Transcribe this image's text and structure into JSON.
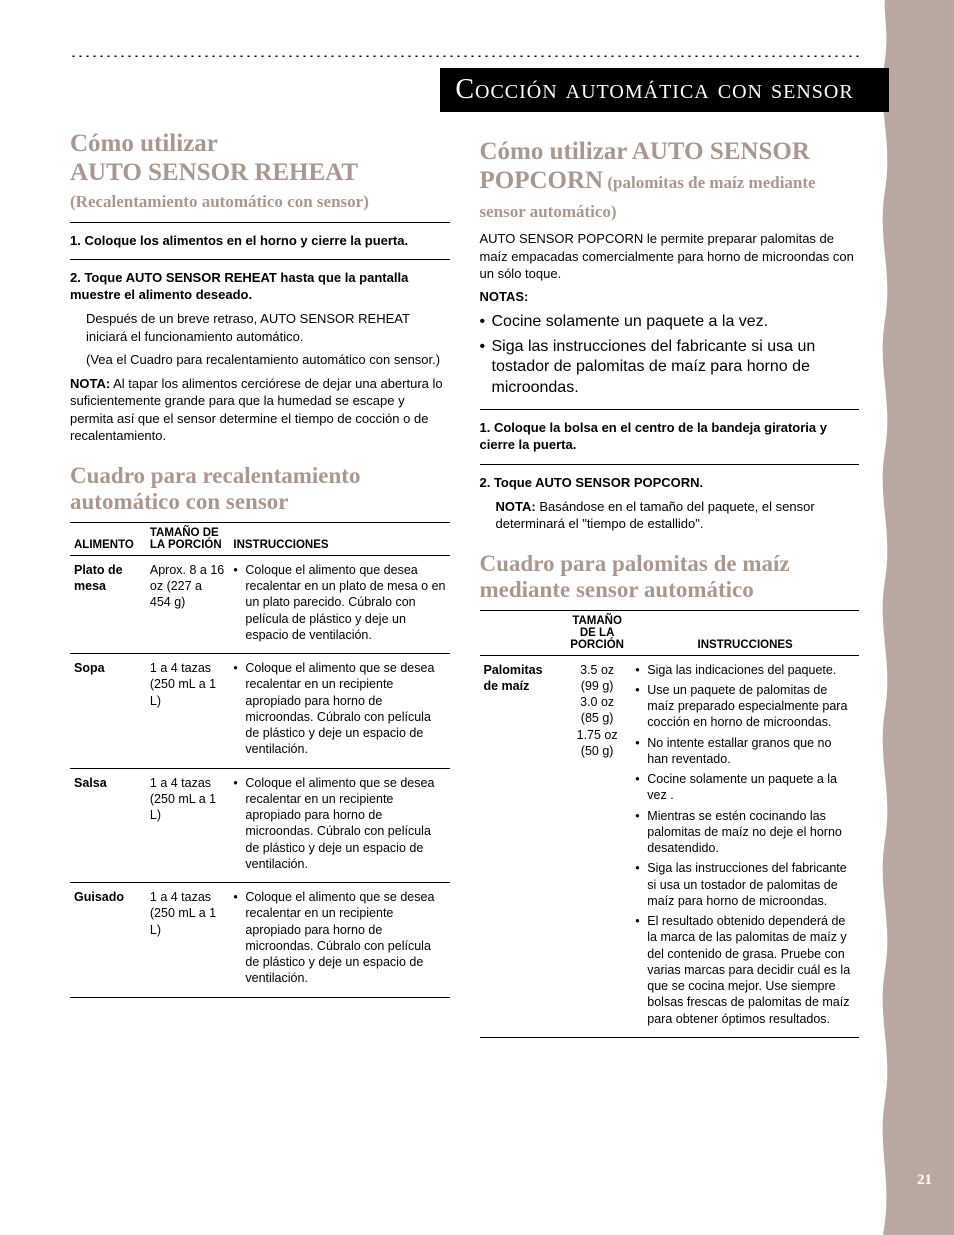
{
  "colors": {
    "accent": "#a89890",
    "band": "#b8a8a0",
    "text": "#000000",
    "bg": "#ffffff"
  },
  "page_number": "21",
  "banner": "Cocción automática con sensor",
  "left": {
    "heading_line1": "Cómo utilizar",
    "heading_line2": "AUTO SENSOR REHEAT",
    "subheading": "(Recalentamiento automático con sensor)",
    "step1": "1. Coloque los alimentos en el horno y cierre la puerta.",
    "step2": "2. Toque AUTO SENSOR REHEAT hasta que la pantalla muestre el alimento deseado.",
    "step2_body1": "Después de un breve retraso, AUTO SENSOR REHEAT iniciará el funcionamiento automático.",
    "step2_body2": "(Vea el Cuadro para recalentamiento automático con sensor.)",
    "nota_label": "NOTA:",
    "nota_body": " Al tapar los alimentos cerciórese de dejar una abertura lo suficientemente grande para que la humedad se escape y permita así que el sensor determine el tiempo de cocción o de recalentamiento.",
    "table_heading": "Cuadro para recalentamiento automático con sensor",
    "th1": "ALIMENTO",
    "th2": "TAMAÑO DE LA PORCIÓN",
    "th3": "INSTRUCCIONES",
    "rows": [
      {
        "food": "Plato de mesa",
        "portion": "Aprox. 8 a 16 oz  (227 a 454 g)",
        "instr": "Coloque el alimento que desea recalentar en un plato de mesa o en un plato parecido. Cúbralo con película de plástico y deje un espacio de ventilación."
      },
      {
        "food": "Sopa",
        "portion": "1 a 4 tazas (250 mL a 1 L)",
        "instr": "Coloque el alimento que se desea recalentar en un recipiente apropiado para horno de microondas. Cúbralo con película de plástico y deje un espacio de ventilación."
      },
      {
        "food": "Salsa",
        "portion": "1 a 4 tazas (250 mL a 1 L)",
        "instr": "Coloque el alimento que se desea recalentar en un recipiente apropiado para horno de microondas. Cúbralo con película de plástico y deje un espacio de ventilación."
      },
      {
        "food": "Guisado",
        "portion": "1 a 4 tazas (250 mL a 1 L)",
        "instr": "Coloque el alimento que se desea recalentar en un recipiente apropiado para horno de microondas. Cúbralo con película de plástico y deje un espacio de ventilación."
      }
    ]
  },
  "right": {
    "heading_line1": "Cómo utilizar AUTO SENSOR POPCORN",
    "heading_sub": " (palomitas de maíz mediante sensor automático)",
    "intro": "AUTO SENSOR POPCORN le permite preparar palomitas de maíz empacadas comercialmente para horno de microondas con un sólo toque.",
    "notas_label": "NOTAS:",
    "notas": [
      "Cocine solamente un paquete a la vez.",
      "Siga las instrucciones del fabricante si usa un tostador de palomitas de maíz para horno de microondas."
    ],
    "step1": "1. Coloque la bolsa en el centro de la bandeja giratoria y cierre la puerta.",
    "step2": "2. Toque AUTO SENSOR POPCORN.",
    "step2_note_label": "NOTA:",
    "step2_note_body": " Basándose en el tamaño del paquete, el sensor determinará el \"tiempo de estallido\".",
    "table_heading": "Cuadro para palomitas de maíz mediante sensor automático",
    "th1": "",
    "th2": "TAMAÑO DE LA PORCIÓN",
    "th3": "INSTRUCCIONES",
    "row_food": "Palomitas de maíz",
    "row_portion": "3.5 oz\n(99 g)\n3.0 oz\n(85 g)\n1.75 oz\n(50 g)",
    "row_instr": [
      "Siga las indicaciones del paquete.",
      "Use un paquete de palomitas de maíz preparado especialmente para cocción en horno de microondas.",
      "No intente estallar granos que no han reventado.",
      "Cocine solamente un paquete a la vez .",
      "Mientras se estén cocinando las palomitas de maíz no deje el horno desatendido.",
      "Siga las instrucciones del fabricante si usa un tostador de palomitas de maíz para horno de microondas.",
      "El resultado obtenido dependerá de la marca de las palomitas de maíz y del contenido de grasa. Pruebe con varias marcas para decidir cuál es la que se cocina mejor. Use siempre bolsas frescas de palomitas de maíz para obtener óptimos resultados."
    ]
  }
}
